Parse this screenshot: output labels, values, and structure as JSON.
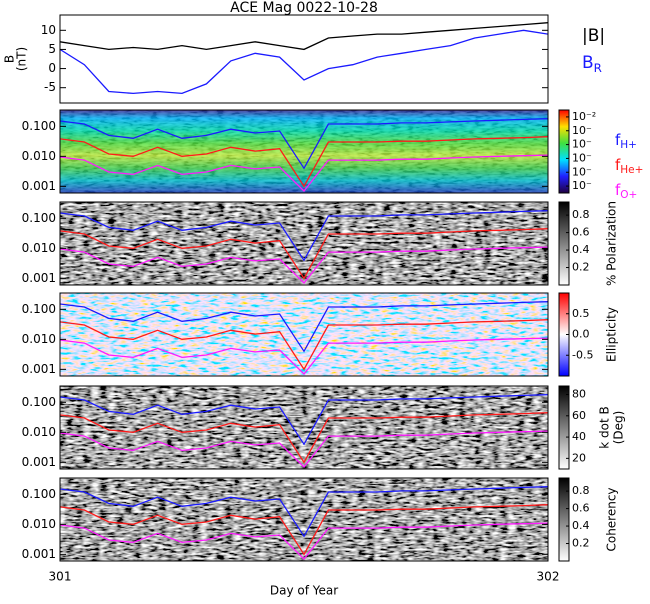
{
  "chart_data": [
    {
      "type": "line",
      "title": "ACE Mag 0022-10-28",
      "ylabel": "B",
      "ylabel_unit": "(nT)",
      "x": [
        301.0,
        301.05,
        301.1,
        301.15,
        301.2,
        301.25,
        301.3,
        301.35,
        301.4,
        301.45,
        301.5,
        301.55,
        301.6,
        301.65,
        301.7,
        301.75,
        301.8,
        301.85,
        301.9,
        301.95,
        302.0
      ],
      "ylim": [
        -9,
        14
      ],
      "yticks": [
        -5,
        0,
        5,
        10
      ],
      "series": [
        {
          "name": "|B|",
          "color": "#000000",
          "values": [
            7,
            6,
            5,
            5.5,
            5,
            6,
            5,
            6,
            7,
            6,
            5,
            8,
            8.5,
            9,
            9,
            9.5,
            10,
            10.5,
            11,
            11.5,
            12
          ]
        },
        {
          "name": "B",
          "name_subscript": "R",
          "color": "#1a1aff",
          "values": [
            5,
            1,
            -6,
            -6.5,
            -6,
            -6.5,
            -4,
            2,
            4,
            3,
            -3,
            0,
            1,
            3,
            4,
            5,
            6,
            8,
            9,
            10,
            9
          ]
        }
      ]
    },
    {
      "type": "spectrogram",
      "log_y": true,
      "ylim": [
        0.0006,
        0.35
      ],
      "yticks": [
        {
          "value": 0.1,
          "label": "0.100"
        },
        {
          "value": 0.01,
          "label": "0.010"
        },
        {
          "value": 0.001,
          "label": "0.001"
        }
      ],
      "colorbar": {
        "colormap": "rainbow",
        "lim": [
          -7.5,
          -1.5
        ],
        "ticks": [
          {
            "value": -2,
            "label": "10⁻²"
          },
          {
            "value": -3,
            "label": "10⁻"
          },
          {
            "value": -4,
            "label": "10⁻"
          },
          {
            "value": -5,
            "label": "10⁻"
          },
          {
            "value": -6,
            "label": "10⁻"
          },
          {
            "value": -7,
            "label": "10⁻"
          }
        ]
      },
      "series": [
        {
          "name": "f",
          "name_subscript": "H+",
          "color": "#1a1aff",
          "values": [
            0.15,
            0.12,
            0.05,
            0.04,
            0.08,
            0.04,
            0.05,
            0.08,
            0.06,
            0.07,
            0.004,
            0.12,
            0.12,
            0.12,
            0.13,
            0.13,
            0.14,
            0.15,
            0.16,
            0.17,
            0.18
          ]
        },
        {
          "name": "f",
          "name_subscript": "He+",
          "color": "#ff1a1a",
          "values": [
            0.038,
            0.03,
            0.012,
            0.01,
            0.02,
            0.01,
            0.012,
            0.02,
            0.015,
            0.018,
            0.001,
            0.03,
            0.03,
            0.03,
            0.032,
            0.032,
            0.035,
            0.038,
            0.04,
            0.042,
            0.045
          ]
        },
        {
          "name": "f",
          "name_subscript": "O+",
          "color": "#ff1aff",
          "values": [
            0.0095,
            0.0075,
            0.003,
            0.0025,
            0.005,
            0.0025,
            0.003,
            0.005,
            0.0038,
            0.0044,
            0.0007,
            0.0075,
            0.0075,
            0.0075,
            0.008,
            0.008,
            0.0088,
            0.0095,
            0.01,
            0.0105,
            0.011
          ]
        }
      ]
    },
    {
      "type": "spectrogram",
      "log_y": true,
      "ylim": [
        0.0006,
        0.35
      ],
      "yticks": [
        {
          "value": 0.1,
          "label": "0.100"
        },
        {
          "value": 0.01,
          "label": "0.010"
        },
        {
          "value": 0.001,
          "label": "0.001"
        }
      ],
      "colorbar": {
        "colormap": "gray",
        "label": "% Polarization",
        "lim": [
          0,
          0.95
        ],
        "ticks": [
          0.2,
          0.4,
          0.6,
          0.8
        ]
      }
    },
    {
      "type": "spectrogram",
      "log_y": true,
      "ylim": [
        0.0006,
        0.35
      ],
      "yticks": [
        {
          "value": 0.1,
          "label": "0.100"
        },
        {
          "value": 0.01,
          "label": "0.010"
        },
        {
          "value": 0.001,
          "label": "0.001"
        }
      ],
      "colorbar": {
        "colormap": "bwr",
        "label": "Ellipticity",
        "lim": [
          -1,
          1
        ],
        "ticks": [
          -0.5,
          {
            "value": 0,
            "label": "0.0"
          },
          0.5
        ]
      }
    },
    {
      "type": "spectrogram",
      "log_y": true,
      "ylim": [
        0.0006,
        0.35
      ],
      "yticks": [
        {
          "value": 0.1,
          "label": "0.100"
        },
        {
          "value": 0.01,
          "label": "0.010"
        },
        {
          "value": 0.001,
          "label": "0.001"
        }
      ],
      "colorbar": {
        "colormap": "gray",
        "label": "k dot B",
        "label_unit": "(Deg)",
        "lim": [
          10,
          88
        ],
        "ticks": [
          20,
          40,
          60,
          80
        ]
      }
    },
    {
      "type": "spectrogram",
      "log_y": true,
      "ylim": [
        0.0006,
        0.35
      ],
      "yticks": [
        {
          "value": 0.1,
          "label": "0.100"
        },
        {
          "value": 0.01,
          "label": "0.010"
        },
        {
          "value": 0.001,
          "label": "0.001"
        }
      ],
      "colorbar": {
        "colormap": "gray",
        "label": "Coherency",
        "lim": [
          0,
          0.95
        ],
        "ticks": [
          0.2,
          0.4,
          0.6,
          0.8
        ]
      },
      "xlim": [
        301,
        302
      ],
      "xticks": [
        301,
        302
      ],
      "xlabel": "Day of Year"
    }
  ]
}
